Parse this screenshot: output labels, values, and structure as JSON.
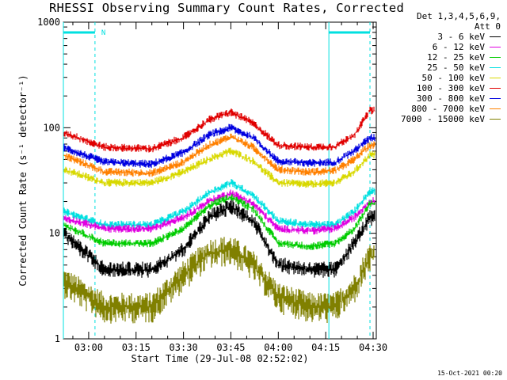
{
  "chart_data": {
    "type": "line",
    "title": "RHESSI Observing Summary Count Rates, Corrected",
    "xlabel": "Start Time (29-Jul-08 02:52:02)",
    "ylabel": "Corrected Count Rate (s⁻¹ detector⁻¹)",
    "y_scale": "log",
    "ylim": [
      1,
      1000
    ],
    "xlim": [
      "02:52",
      "04:31"
    ],
    "x_ticks": [
      "03:00",
      "03:15",
      "03:30",
      "03:45",
      "04:00",
      "04:15",
      "04:30"
    ],
    "y_ticks": [
      "1",
      "10",
      "100",
      "1000"
    ],
    "legend_header": [
      "Det 1,3,4,5,6,9,",
      "Att 0"
    ],
    "legend_placement": "right",
    "grid": false,
    "x": [
      "02:52",
      "03:05",
      "03:20",
      "03:30",
      "03:38",
      "03:45",
      "03:52",
      "04:00",
      "04:10",
      "04:18",
      "04:24",
      "04:29"
    ],
    "series": [
      {
        "name": "3 - 6 keV",
        "color": "#000000",
        "values": [
          10,
          4.5,
          4.5,
          7,
          14,
          18,
          13,
          5,
          4.5,
          4.5,
          8,
          14
        ]
      },
      {
        "name": "6 - 12 keV",
        "color": "#e000e0",
        "values": [
          14,
          11,
          11,
          14,
          20,
          24,
          19,
          11,
          10.5,
          11,
          14,
          20
        ]
      },
      {
        "name": "12 - 25 keV",
        "color": "#00cc00",
        "values": [
          12,
          8,
          8,
          11,
          18,
          22,
          17,
          8,
          7.5,
          8,
          11,
          19
        ]
      },
      {
        "name": "25 - 50 keV",
        "color": "#00e0e0",
        "values": [
          16,
          12,
          12,
          16,
          24,
          30,
          23,
          13,
          12,
          12,
          16,
          25
        ]
      },
      {
        "name": "50 - 100 keV",
        "color": "#d8d800",
        "values": [
          40,
          30,
          30,
          38,
          50,
          60,
          48,
          30,
          29,
          30,
          38,
          55
        ]
      },
      {
        "name": "100 - 300 keV",
        "color": "#e00000",
        "values": [
          90,
          65,
          63,
          80,
          118,
          140,
          110,
          68,
          65,
          66,
          85,
          145
        ]
      },
      {
        "name": "300 - 800 keV",
        "color": "#0000e0",
        "values": [
          65,
          47,
          45,
          58,
          85,
          100,
          80,
          48,
          46,
          47,
          60,
          80
        ]
      },
      {
        "name": "800 - 7000 keV",
        "color": "#ff8000",
        "values": [
          55,
          38,
          37,
          47,
          68,
          82,
          65,
          40,
          38,
          39,
          50,
          68
        ]
      },
      {
        "name": "7000 - 15000 keV",
        "color": "#808000",
        "values": [
          3.5,
          2,
          2,
          4,
          6.5,
          7,
          5,
          2.5,
          2,
          2,
          3,
          6
        ]
      }
    ],
    "annotations": {
      "bar_label": "N",
      "bar_color": "#00e0e0",
      "markers_solid": [
        "02:52",
        "04:16"
      ],
      "markers_dashed": [
        "03:02",
        "04:29"
      ]
    }
  },
  "footer": {
    "timestamp": "15-Oct-2021 00:20"
  }
}
